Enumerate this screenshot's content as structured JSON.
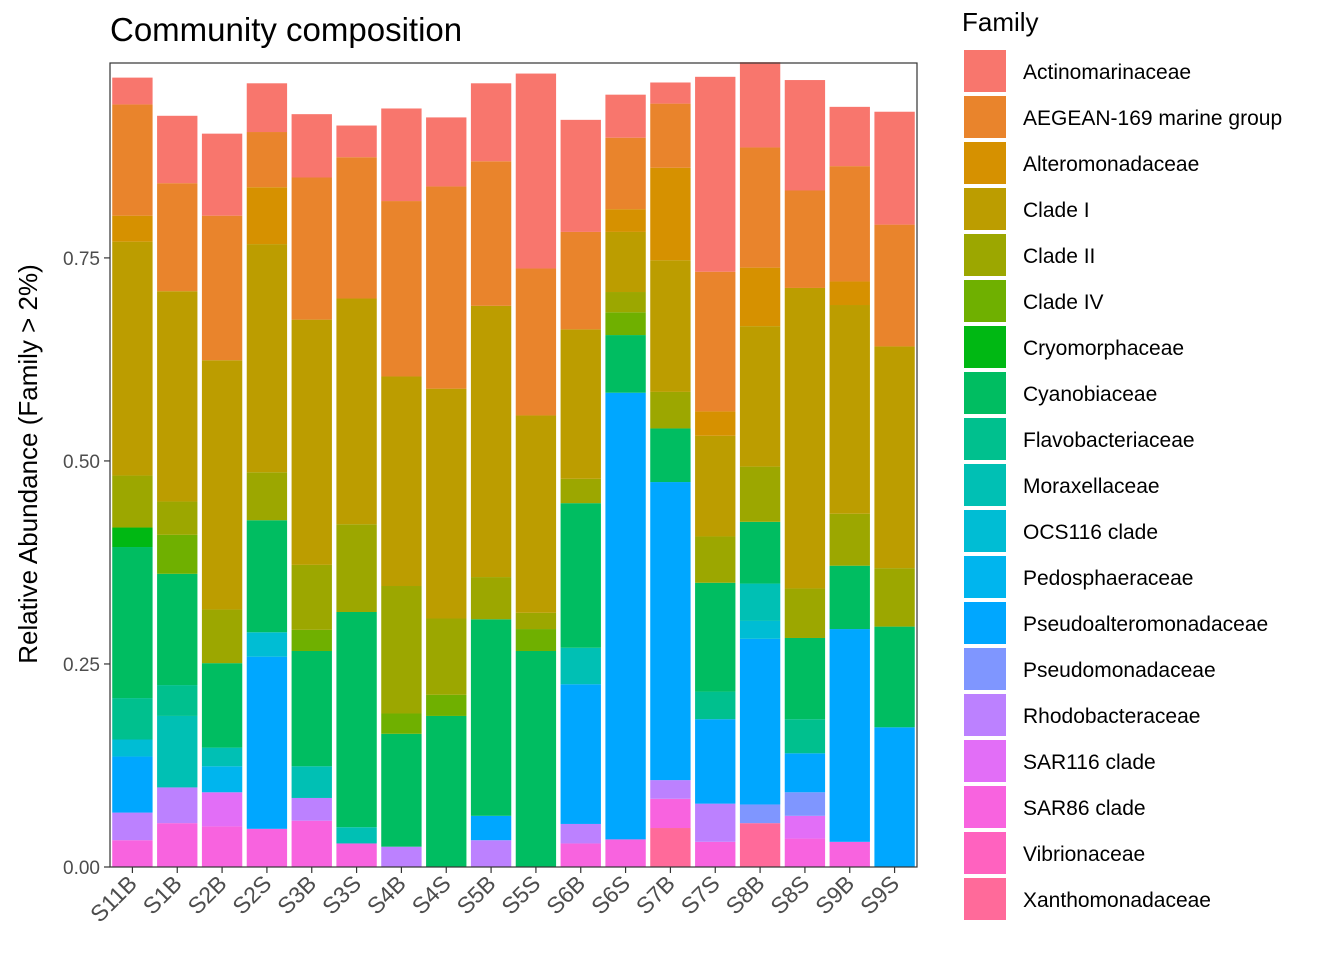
{
  "chart_data": {
    "type": "bar",
    "stacked": true,
    "title": "Community composition",
    "xlabel": "",
    "ylabel": "Relative Abundance (Family > 2%)",
    "ylim": [
      0,
      0.99
    ],
    "yticks": [
      "0.00",
      "0.25",
      "0.50",
      "0.75"
    ],
    "grid": false,
    "legend_title": "Family",
    "legend_position": "right",
    "categories": [
      "S11B",
      "S1B",
      "S2B",
      "S2S",
      "S3B",
      "S3S",
      "S4B",
      "S4S",
      "S5B",
      "S5S",
      "S6B",
      "S6S",
      "S7B",
      "S7S",
      "S8B",
      "S8S",
      "S9B",
      "S9S"
    ],
    "families": [
      {
        "name": "Actinomarinaceae",
        "color": "#F8766D"
      },
      {
        "name": "AEGEAN-169 marine group",
        "color": "#E9842C"
      },
      {
        "name": "Alteromonadaceae",
        "color": "#D69100"
      },
      {
        "name": "Clade I",
        "color": "#BC9D00"
      },
      {
        "name": "Clade II",
        "color": "#9CA700"
      },
      {
        "name": "Clade IV",
        "color": "#6FB000"
      },
      {
        "name": "Cryomorphaceae",
        "color": "#00B813"
      },
      {
        "name": "Cyanobiaceae",
        "color": "#00BD61"
      },
      {
        "name": "Flavobacteriaceae",
        "color": "#00C08E"
      },
      {
        "name": "Moraxellaceae",
        "color": "#00C0B4"
      },
      {
        "name": "OCS116 clade",
        "color": "#00BDD4"
      },
      {
        "name": "Pedosphaeraceae",
        "color": "#00B5EE"
      },
      {
        "name": "Pseudoalteromonadaceae",
        "color": "#00A7FF"
      },
      {
        "name": "Pseudomonadaceae",
        "color": "#7F96FF"
      },
      {
        "name": "Rhodobacteraceae",
        "color": "#BC81FF"
      },
      {
        "name": "SAR116 clade",
        "color": "#E26EF7"
      },
      {
        "name": "SAR86 clade",
        "color": "#F863DF"
      },
      {
        "name": "Vibrionaceae",
        "color": "#FF62BF"
      },
      {
        "name": "Xanthomonadaceae",
        "color": "#FF6A9A"
      }
    ],
    "series": [
      {
        "name": "Xanthomonadaceae",
        "values": [
          0,
          0,
          0,
          0,
          0,
          0,
          0,
          0,
          0,
          0,
          0,
          0,
          0.048,
          0,
          0.054,
          0,
          0,
          0
        ]
      },
      {
        "name": "Vibrionaceae",
        "values": [
          0,
          0,
          0,
          0,
          0,
          0,
          0,
          0,
          0,
          0,
          0,
          0,
          0,
          0,
          0,
          0,
          0,
          0
        ]
      },
      {
        "name": "SAR86 clade",
        "values": [
          0.033,
          0.054,
          0.05,
          0.047,
          0.057,
          0.029,
          0,
          0,
          0,
          0,
          0.029,
          0.034,
          0.036,
          0.031,
          0,
          0.035,
          0.031,
          0
        ]
      },
      {
        "name": "SAR116 clade",
        "values": [
          0,
          0,
          0.042,
          0,
          0,
          0,
          0,
          0,
          0,
          0,
          0,
          0,
          0,
          0,
          0,
          0.028,
          0,
          0
        ]
      },
      {
        "name": "Rhodobacteraceae",
        "values": [
          0.034,
          0.044,
          0,
          0,
          0.028,
          0,
          0.025,
          0,
          0.033,
          0,
          0.024,
          0,
          0.023,
          0.047,
          0,
          0,
          0,
          0
        ]
      },
      {
        "name": "Pseudomonadaceae",
        "values": [
          0,
          0,
          0,
          0,
          0,
          0,
          0,
          0,
          0,
          0,
          0,
          0,
          0,
          0,
          0.023,
          0.029,
          0,
          0
        ]
      },
      {
        "name": "Pseudoalteromonadaceae",
        "values": [
          0.069,
          0,
          0,
          0.212,
          0,
          0,
          0,
          0,
          0.03,
          0,
          0.172,
          0.55,
          0.367,
          0.104,
          0.204,
          0.048,
          0.262,
          0.172
        ]
      },
      {
        "name": "Pedosphaeraceae",
        "values": [
          0,
          0,
          0.032,
          0,
          0,
          0,
          0,
          0,
          0,
          0,
          0,
          0,
          0,
          0,
          0,
          0,
          0,
          0
        ]
      },
      {
        "name": "OCS116 clade",
        "values": [
          0.021,
          0,
          0,
          0.03,
          0,
          0,
          0,
          0,
          0,
          0,
          0,
          0,
          0,
          0,
          0.022,
          0,
          0,
          0
        ]
      },
      {
        "name": "Moraxellaceae",
        "values": [
          0,
          0.088,
          0.023,
          0,
          0.039,
          0.02,
          0,
          0,
          0,
          0,
          0.045,
          0,
          0,
          0,
          0.046,
          0,
          0,
          0
        ]
      },
      {
        "name": "Flavobacteriaceae",
        "values": [
          0.051,
          0.038,
          0,
          0,
          0,
          0,
          0,
          0,
          0,
          0,
          0,
          0,
          0,
          0.034,
          0,
          0.042,
          0,
          0
        ]
      },
      {
        "name": "Cyanobiaceae",
        "values": [
          0.186,
          0.137,
          0.104,
          0.138,
          0.142,
          0.265,
          0.139,
          0.186,
          0.242,
          0.266,
          0.178,
          0.071,
          0.066,
          0.134,
          0.076,
          0.1,
          0.078,
          0.124
        ]
      },
      {
        "name": "Cryomorphaceae",
        "values": [
          0.024,
          0,
          0,
          0,
          0,
          0,
          0,
          0,
          0,
          0,
          0,
          0,
          0,
          0,
          0,
          0,
          0,
          0
        ]
      },
      {
        "name": "Clade IV",
        "values": [
          0,
          0.048,
          0,
          0,
          0.026,
          0,
          0.025,
          0.026,
          0,
          0.027,
          0,
          0.028,
          0,
          0,
          0,
          0,
          0,
          0
        ]
      },
      {
        "name": "Clade II",
        "values": [
          0.064,
          0.041,
          0.066,
          0.059,
          0.08,
          0.108,
          0.157,
          0.094,
          0.052,
          0.02,
          0.03,
          0.025,
          0.045,
          0.057,
          0.068,
          0.061,
          0.064,
          0.072
        ]
      },
      {
        "name": "Clade I",
        "values": [
          0.288,
          0.259,
          0.307,
          0.281,
          0.302,
          0.278,
          0.258,
          0.283,
          0.334,
          0.243,
          0.184,
          0.074,
          0.162,
          0.124,
          0.173,
          0.37,
          0.257,
          0.273
        ]
      },
      {
        "name": "Alteromonadaceae",
        "values": [
          0.032,
          0,
          0,
          0.07,
          0,
          0,
          0,
          0,
          0,
          0,
          0,
          0.028,
          0.114,
          0.03,
          0.072,
          0,
          0.029,
          0
        ]
      },
      {
        "name": "AEGEAN-169 marine group",
        "values": [
          0.137,
          0.133,
          0.178,
          0.068,
          0.175,
          0.174,
          0.216,
          0.249,
          0.178,
          0.181,
          0.12,
          0.088,
          0.079,
          0.172,
          0.148,
          0.12,
          0.142,
          0.15
        ]
      },
      {
        "name": "Actinomarinaceae",
        "values": [
          0.033,
          0.083,
          0.101,
          0.06,
          0.078,
          0.039,
          0.114,
          0.085,
          0.096,
          0.24,
          0.138,
          0.053,
          0.026,
          0.24,
          0.105,
          0.136,
          0.073,
          0.139
        ]
      }
    ]
  }
}
